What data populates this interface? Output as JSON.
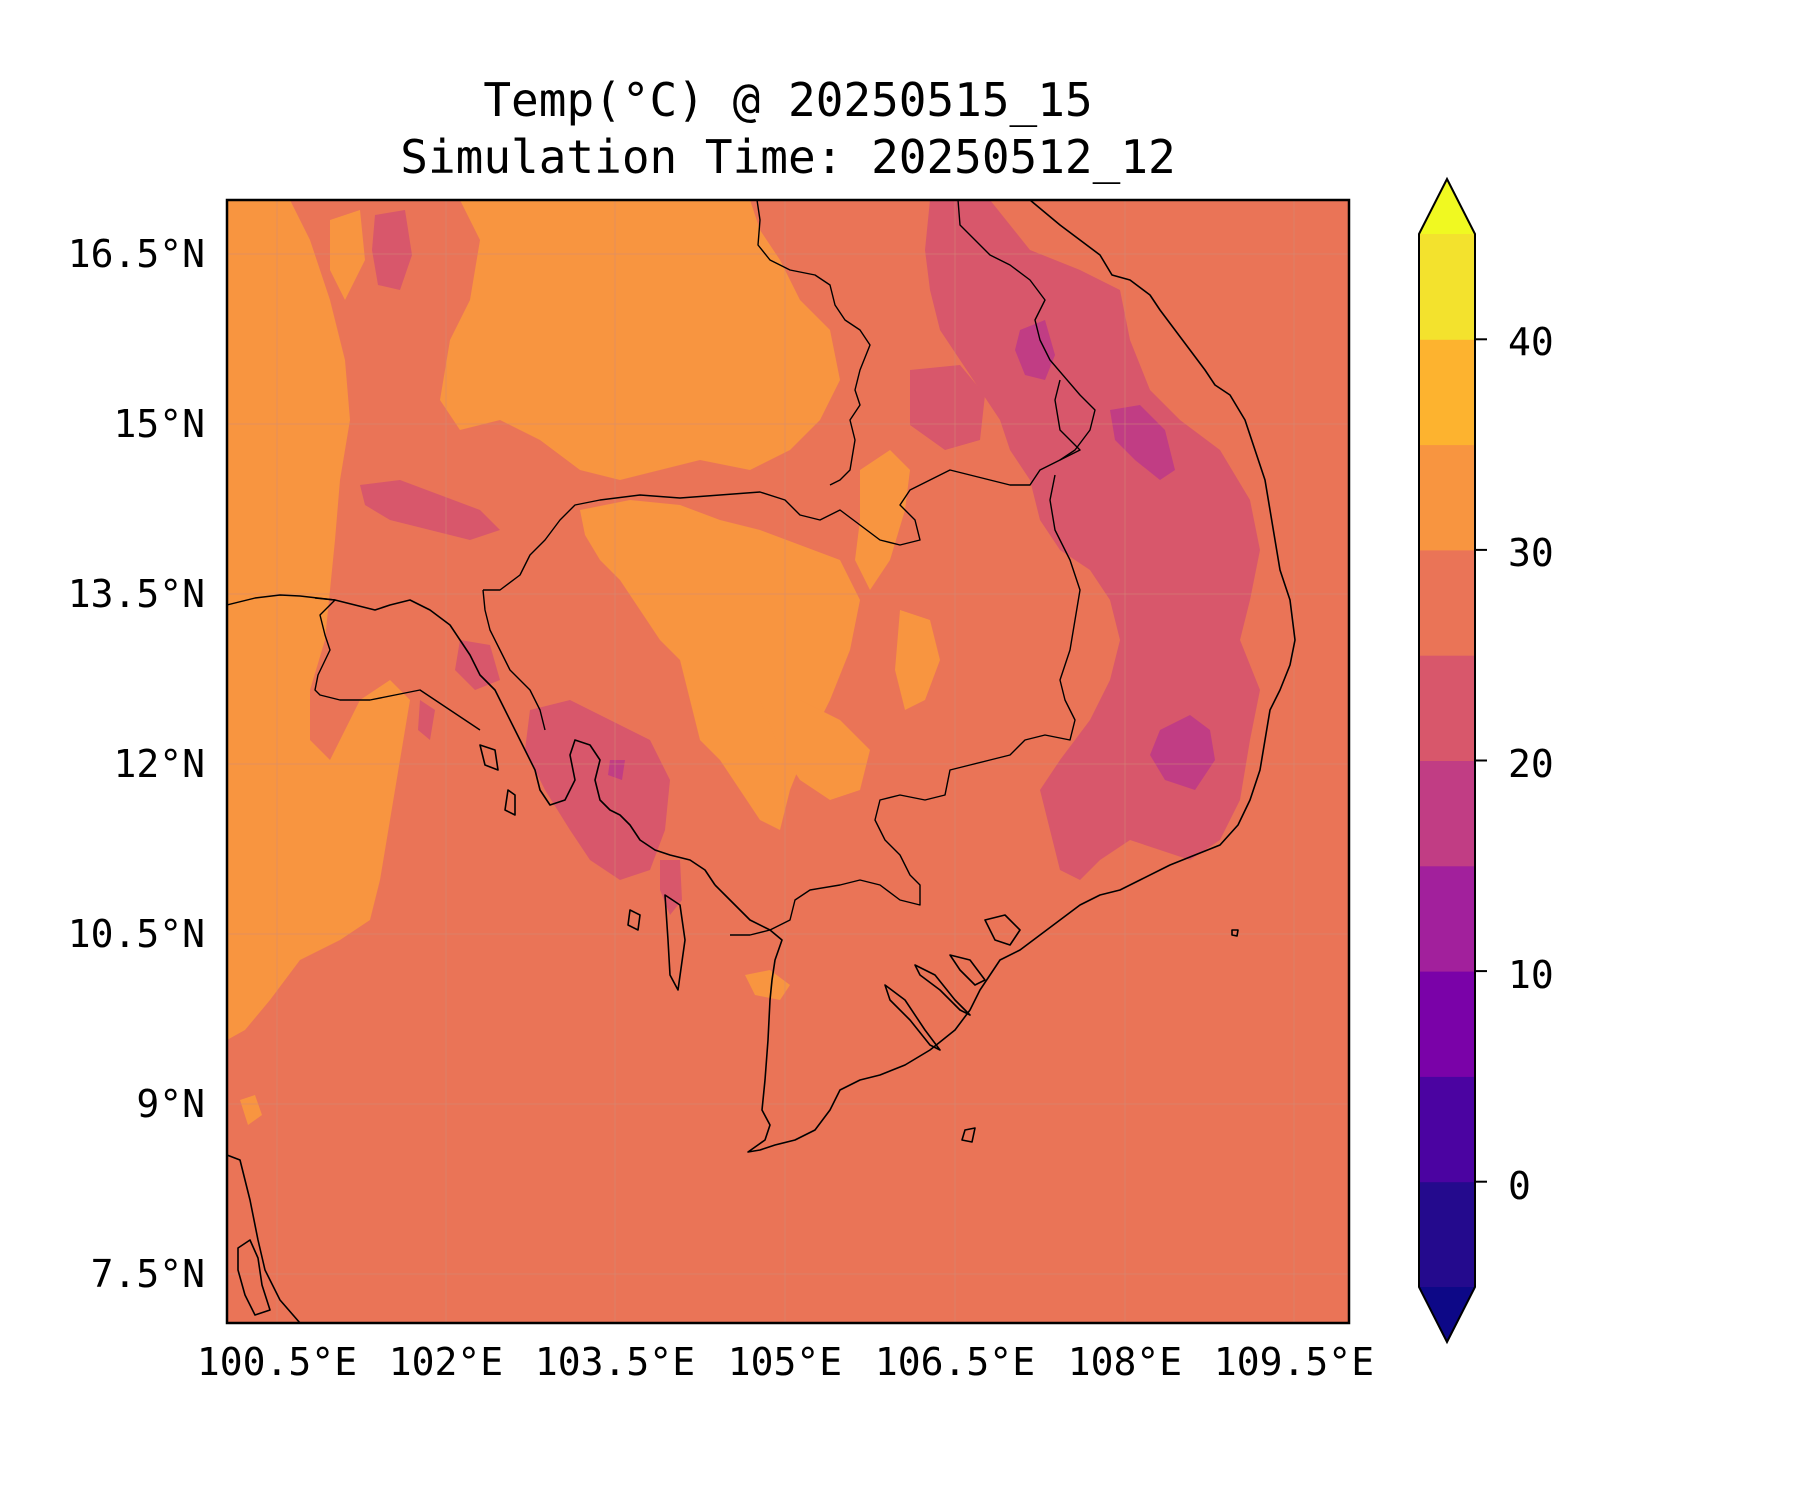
{
  "title": {
    "line1": "Temp(°C) @ 20250515_15",
    "line2": "Simulation Time: 20250512_12"
  },
  "map": {
    "lon_range": [
      100.0,
      110.0
    ],
    "lat_range": [
      7.0,
      17.0
    ],
    "x_ticks": [
      "100.5°E",
      "102°E",
      "103.5°E",
      "105°E",
      "106.5°E",
      "108°E",
      "109.5°E"
    ],
    "y_ticks": [
      "16.5°N",
      "15°N",
      "13.5°N",
      "12°N",
      "10.5°N",
      "9°N",
      "7.5°N"
    ],
    "gridlines": true,
    "background_level": "25-30"
  },
  "colorbar": {
    "ticks": [
      "40",
      "30",
      "20",
      "10",
      "0"
    ],
    "levels": [
      -5,
      0,
      5,
      10,
      15,
      20,
      25,
      30,
      35,
      40,
      45
    ],
    "extend": "both",
    "colors": [
      "#240a8d",
      "#4b03a1",
      "#7a02a8",
      "#a2209c",
      "#c13d84",
      "#d8576b",
      "#ea7457",
      "#f89540",
      "#fdb32f",
      "#f3e22d"
    ],
    "under_color": "#0d0887",
    "over_color": "#f0f921"
  },
  "colors": {
    "level_20_25": "#d8576b",
    "level_25_30": "#ea7457",
    "level_30_35": "#f89540",
    "level_15_20": "#c13d84"
  }
}
